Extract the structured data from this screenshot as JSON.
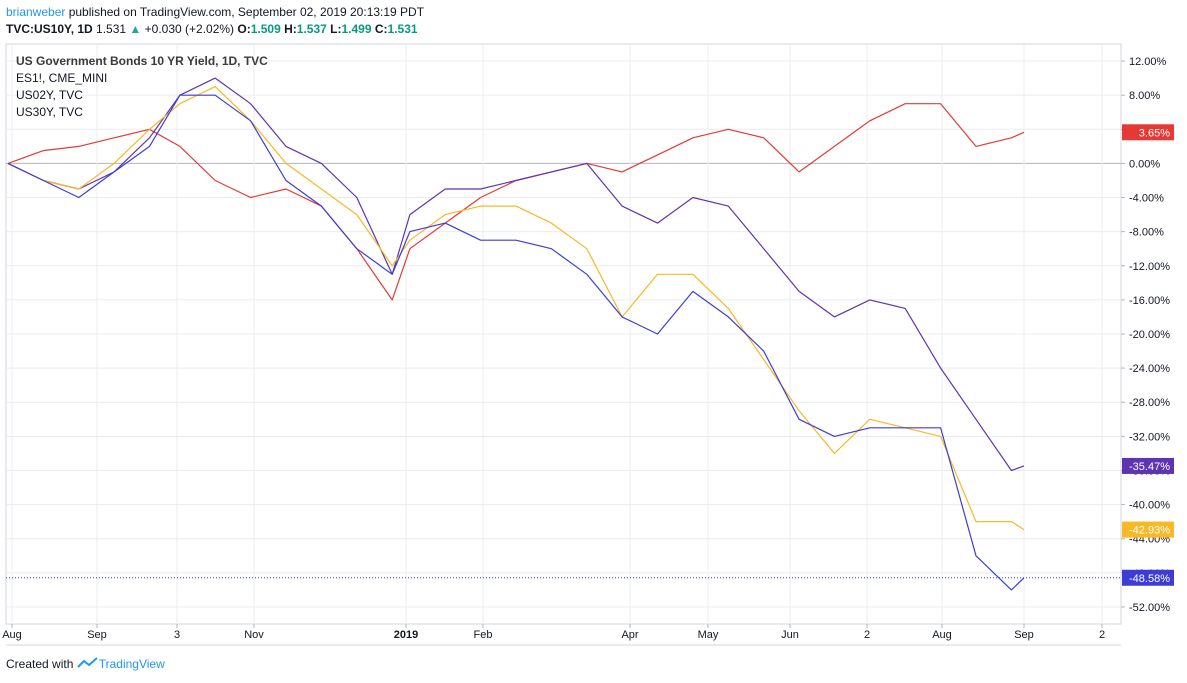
{
  "header": {
    "author": "brianweber",
    "published": " published on TradingView.com, September 02, 2019 20:13:19 PDT"
  },
  "ohlc": {
    "symbol": "TVC:US10Y, 1D",
    "last": "1.531",
    "arrow": "▲",
    "change": "+0.030 (+2.02%)",
    "o_label": "O:",
    "o": "1.509",
    "h_label": "H:",
    "h": "1.537",
    "l_label": "L:",
    "l": "1.499",
    "c_label": "C:",
    "c": "1.531"
  },
  "legend": {
    "main": "US Government Bonds 10 YR Yield, 1D, TVC",
    "items": [
      "ES1!, CME_MINI",
      "US02Y, TVC",
      "US30Y, TVC"
    ]
  },
  "footer": {
    "created": "Created with",
    "brand": "TradingView"
  },
  "colors": {
    "us10y": "#3d3dd6",
    "es1": "#e53935",
    "us02y": "#5e35b1",
    "us30y": "#f9b825",
    "grid": "#e9ecf2",
    "zero": "#b2b5be"
  },
  "chart_data": {
    "type": "line",
    "y_unit": "%",
    "ylim": [
      -54,
      14
    ],
    "grid": true,
    "x_tick_labels": [
      "Aug",
      "Sep",
      "3",
      "Nov",
      "2019",
      "Feb",
      "Apr",
      "May",
      "Jun",
      "2",
      "Aug",
      "Sep",
      "2"
    ],
    "y_tick_labels": [
      "12.00%",
      "8.00%",
      "4.00%",
      "0.00%",
      "-4.00%",
      "-8.00%",
      "-12.00%",
      "-16.00%",
      "-20.00%",
      "-24.00%",
      "-28.00%",
      "-32.00%",
      "-36.00%",
      "-40.00%",
      "-44.00%",
      "-48.00%",
      "-52.00%"
    ],
    "x": [
      "2018-07-27",
      "2018-08-10",
      "2018-08-24",
      "2018-09-07",
      "2018-09-21",
      "2018-10-03",
      "2018-10-17",
      "2018-10-31",
      "2018-11-14",
      "2018-11-28",
      "2018-12-12",
      "2018-12-26",
      "2019-01-02",
      "2019-01-16",
      "2019-01-30",
      "2019-02-13",
      "2019-02-27",
      "2019-03-13",
      "2019-03-27",
      "2019-04-10",
      "2019-04-24",
      "2019-05-08",
      "2019-05-22",
      "2019-06-05",
      "2019-06-19",
      "2019-07-03",
      "2019-07-17",
      "2019-07-31",
      "2019-08-14",
      "2019-08-28",
      "2019-09-02"
    ],
    "series": [
      {
        "name": "ES1!, CME_MINI",
        "color_key": "es1",
        "values": [
          0,
          1.5,
          2,
          3,
          4,
          2,
          -2,
          -4,
          -3,
          -5,
          -10,
          -16,
          -10,
          -7,
          -4,
          -2,
          -1,
          0,
          -1,
          1,
          3,
          4,
          3,
          -1,
          2,
          5,
          7,
          7,
          2,
          3,
          3.65
        ]
      },
      {
        "name": "US02Y, TVC",
        "color_key": "us02y",
        "values": [
          0,
          -2,
          -3,
          -1,
          3,
          8,
          10,
          7,
          2,
          0,
          -4,
          -13,
          -6,
          -3,
          -3,
          -2,
          -1,
          0,
          -5,
          -7,
          -4,
          -5,
          -10,
          -15,
          -18,
          -16,
          -17,
          -24,
          -30,
          -36,
          -35.47
        ]
      },
      {
        "name": "US30Y, TVC",
        "color_key": "us30y",
        "values": [
          0,
          -2,
          -3,
          0,
          4,
          7,
          9,
          5,
          0,
          -3,
          -6,
          -12,
          -9,
          -6,
          -5,
          -5,
          -7,
          -10,
          -18,
          -13,
          -13,
          -17,
          -23,
          -29,
          -34,
          -30,
          -31,
          -32,
          -42,
          -42,
          -42.93
        ]
      },
      {
        "name": "US Government Bonds 10 YR Yield, 1D, TVC",
        "color_key": "us10y",
        "values": [
          0,
          -2,
          -4,
          -1,
          2,
          8,
          8,
          5,
          -2,
          -5,
          -10,
          -13,
          -8,
          -7,
          -9,
          -9,
          -10,
          -13,
          -18,
          -20,
          -15,
          -18,
          -22,
          -30,
          -32,
          -31,
          -31,
          -31,
          -46,
          -50,
          -48.58
        ]
      }
    ],
    "last_labels": [
      {
        "text": "3.65%",
        "color_key": "es1",
        "value": 3.65
      },
      {
        "text": "-35.47%",
        "color_key": "us02y",
        "value": -35.47
      },
      {
        "text": "-42.93%",
        "color_key": "us30y",
        "value": -42.93
      },
      {
        "text": "-48.58%",
        "color_key": "us10y",
        "value": -48.58
      }
    ]
  }
}
